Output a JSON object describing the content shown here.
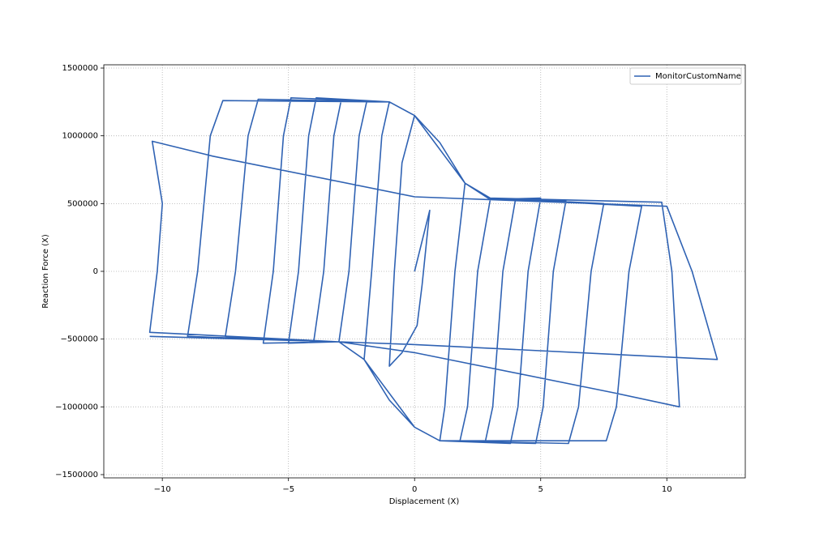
{
  "chart_data": {
    "type": "line",
    "x_label": "Displacement (X)",
    "y_label": "Reaction Force (X)",
    "xlim": [
      -12.32,
      13.11
    ],
    "ylim": [
      -1524000,
      1524000
    ],
    "xticks": [
      {
        "value": -10,
        "label": "−10"
      },
      {
        "value": -5,
        "label": "−5"
      },
      0,
      5,
      10
    ],
    "yticks": [
      {
        "value": -1500000,
        "label": "−1500000"
      },
      {
        "value": -1000000,
        "label": "−1000000"
      },
      {
        "value": -500000,
        "label": "−500000"
      },
      0,
      500000,
      1000000,
      1500000
    ],
    "grid": true,
    "legend": "upper right",
    "x": [
      0,
      0.6,
      0.3,
      0.1,
      -0.5,
      -1,
      -0.8,
      -0.5,
      0,
      1,
      2,
      1.6,
      1.2,
      1,
      0,
      -1,
      -2,
      -1.7,
      -1.3,
      -1,
      0,
      1,
      2,
      3,
      2.5,
      2.1,
      1.8,
      1,
      0,
      -1,
      -2,
      -3,
      -2.6,
      -2.2,
      -1.9,
      -1,
      0,
      1,
      2,
      3,
      4,
      3.5,
      3.1,
      2.8,
      1,
      0,
      -1,
      -2,
      -3,
      -4,
      -3.6,
      -3.2,
      -2.9,
      -1,
      0,
      1,
      2,
      3,
      5,
      4.5,
      4.1,
      3.8,
      1,
      0,
      -1,
      -2,
      -3,
      -5,
      -4.6,
      -4.2,
      -3.9,
      -1,
      0,
      2,
      3,
      6,
      5.5,
      5.1,
      4.8,
      1,
      0,
      -2,
      -3,
      -6,
      -5.6,
      -5.2,
      -4.9,
      -1,
      0,
      2,
      3,
      7.5,
      7,
      6.5,
      6.1,
      1,
      0,
      -2,
      -3,
      -7.5,
      -7.1,
      -6.6,
      -6.2,
      -1,
      0,
      2,
      3,
      9,
      8.5,
      8,
      7.6,
      1,
      0,
      -2,
      -3,
      -9,
      -8.6,
      -8.1,
      -7.6,
      -1,
      0,
      2,
      3,
      9.8,
      10.2,
      10.5,
      8,
      0,
      -3,
      -10.5,
      -10.2,
      -10,
      -10.4,
      -8,
      0,
      10,
      11,
      12,
      0,
      -3,
      -10.5
    ],
    "series": [
      {
        "name": "MonitorCustomName",
        "color": "#2f62b3",
        "values": [
          0,
          450000,
          -100000,
          -400000,
          -600000,
          -700000,
          0,
          800000,
          1150000,
          950000,
          650000,
          0,
          -1000000,
          -1250000,
          -1150000,
          -950000,
          -650000,
          0,
          1000000,
          1250000,
          1150000,
          950000,
          650000,
          530000,
          0,
          -1000000,
          -1250000,
          -1250000,
          -1150000,
          -950000,
          -650000,
          -520000,
          0,
          1000000,
          1250000,
          1250000,
          1150000,
          950000,
          650000,
          530000,
          530000,
          0,
          -1000000,
          -1260000,
          -1250000,
          -1150000,
          -950000,
          -650000,
          -520000,
          -520000,
          0,
          1000000,
          1270000,
          1250000,
          1150000,
          950000,
          650000,
          530000,
          540000,
          0,
          -1000000,
          -1270000,
          -1250000,
          -1150000,
          -950000,
          -650000,
          -520000,
          -530000,
          0,
          1000000,
          1280000,
          1250000,
          1150000,
          650000,
          530000,
          520000,
          0,
          -1000000,
          -1270000,
          -1250000,
          -1150000,
          -650000,
          -520000,
          -530000,
          0,
          1000000,
          1280000,
          1250000,
          1150000,
          650000,
          540000,
          500000,
          0,
          -1000000,
          -1270000,
          -1250000,
          -1150000,
          -650000,
          -520000,
          -480000,
          0,
          1000000,
          1270000,
          1250000,
          1150000,
          650000,
          540000,
          480000,
          0,
          -1000000,
          -1250000,
          -1250000,
          -1150000,
          -650000,
          -520000,
          -480000,
          0,
          1000000,
          1260000,
          1250000,
          1150000,
          650000,
          540000,
          510000,
          0,
          -1000000,
          -900000,
          -600000,
          -520000,
          -450000,
          0,
          500000,
          960000,
          850000,
          550000,
          480000,
          0,
          -650000,
          -540000,
          -520000,
          -480000
        ]
      }
    ]
  }
}
